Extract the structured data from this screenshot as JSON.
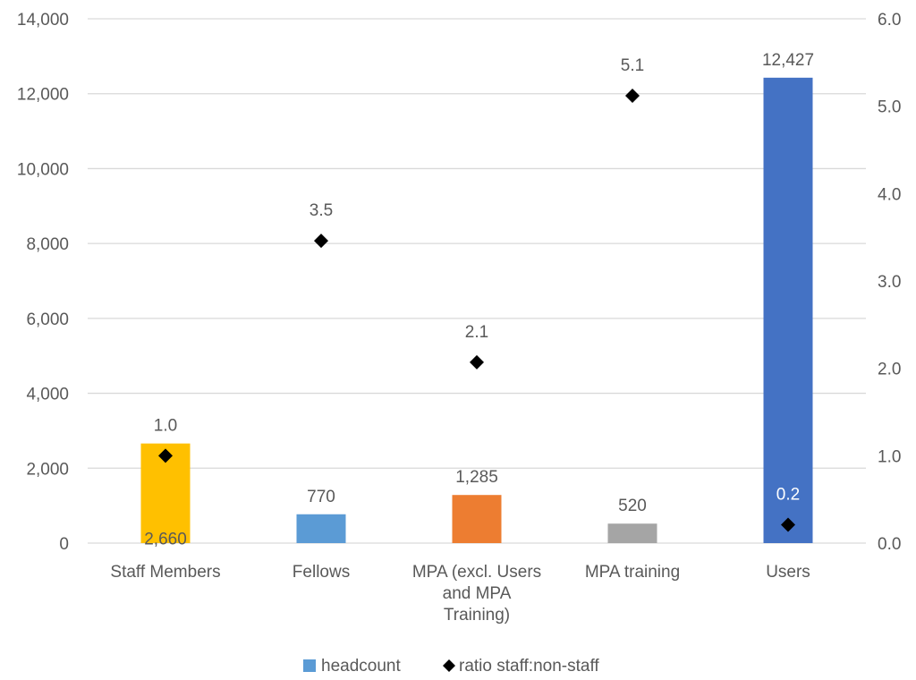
{
  "chart_data": {
    "type": "bar",
    "categories": [
      [
        "Staff Members"
      ],
      [
        "Fellows"
      ],
      [
        "MPA (excl. Users",
        "and MPA",
        "Training)"
      ],
      [
        "MPA training"
      ],
      [
        "Users"
      ]
    ],
    "series": [
      {
        "name": "headcount",
        "type": "bar",
        "axis": "left",
        "values": [
          2660,
          770,
          1285,
          520,
          12427
        ],
        "labels": [
          "2,660",
          "770",
          "1,285",
          "520",
          "12,427"
        ],
        "colors": [
          "#FFC000",
          "#5B9BD5",
          "#ED7D31",
          "#A5A5A5",
          "#4472C4"
        ],
        "legend_color": "#5B9BD5"
      },
      {
        "name": "ratio staff:non-staff",
        "type": "scatter",
        "marker": "diamond",
        "axis": "right",
        "values": [
          1.0,
          3.46,
          2.07,
          5.12,
          0.21
        ],
        "labels": [
          "1.0",
          "3.5",
          "2.1",
          "5.1",
          "0.2"
        ],
        "color": "#000000"
      }
    ],
    "y_left": {
      "min": 0,
      "max": 14000,
      "ticks": [
        "0",
        "2,000",
        "4,000",
        "6,000",
        "8,000",
        "10,000",
        "12,000",
        "14,000"
      ]
    },
    "y_right": {
      "min": 0,
      "max": 6,
      "ticks": [
        "0.0",
        "1.0",
        "2.0",
        "3.0",
        "4.0",
        "5.0",
        "6.0"
      ]
    },
    "grid": true,
    "legend": "bottom"
  }
}
